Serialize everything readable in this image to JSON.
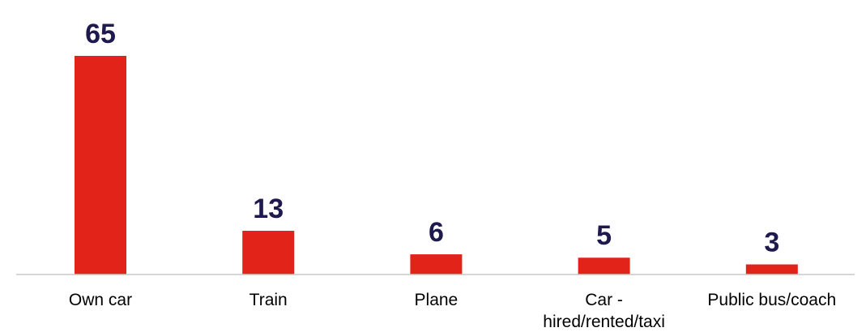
{
  "chart_data": {
    "type": "bar",
    "categories": [
      [
        "Own car"
      ],
      [
        "Train"
      ],
      [
        "Plane"
      ],
      [
        "Car -",
        "hired/rented/taxi"
      ],
      [
        "Public bus/coach"
      ]
    ],
    "values": [
      65,
      13,
      6,
      5,
      3
    ],
    "value_labels": [
      "65",
      "13",
      "6",
      "5",
      "3"
    ],
    "title": "",
    "xlabel": "",
    "ylabel": "",
    "ylim": [
      0,
      65
    ],
    "grid": false,
    "legend": "none",
    "colors": {
      "bar": "#e2231a",
      "value_label": "#1f1a4d",
      "axis": "#c8c8c8"
    }
  }
}
